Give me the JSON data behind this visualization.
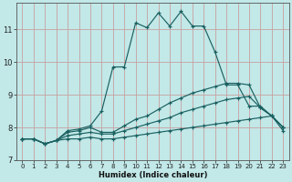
{
  "xlabel": "Humidex (Indice chaleur)",
  "bg_color": "#c2e8e8",
  "grid_color": "#c8a0a0",
  "line_color": "#1a6060",
  "xlim": [
    -0.5,
    23.5
  ],
  "ylim": [
    7.0,
    11.8
  ],
  "yticks": [
    7,
    8,
    9,
    10,
    11
  ],
  "xticks": [
    0,
    1,
    2,
    3,
    4,
    5,
    6,
    7,
    8,
    9,
    10,
    11,
    12,
    13,
    14,
    15,
    16,
    17,
    18,
    19,
    20,
    21,
    22,
    23
  ],
  "lines": [
    {
      "x": [
        0,
        1,
        2,
        3,
        4,
        5,
        6,
        7,
        8,
        9,
        10,
        11,
        12,
        13,
        14,
        15,
        16,
        17,
        18,
        19,
        20,
        21,
        22,
        23
      ],
      "y": [
        7.65,
        7.65,
        7.5,
        7.6,
        7.65,
        7.65,
        7.7,
        7.65,
        7.65,
        7.7,
        7.75,
        7.8,
        7.85,
        7.9,
        7.95,
        8.0,
        8.05,
        8.1,
        8.15,
        8.2,
        8.25,
        8.3,
        8.35,
        7.9
      ]
    },
    {
      "x": [
        0,
        1,
        2,
        3,
        4,
        5,
        6,
        7,
        8,
        9,
        10,
        11,
        12,
        13,
        14,
        15,
        16,
        17,
        18,
        19,
        20,
        21,
        22,
        23
      ],
      "y": [
        7.65,
        7.65,
        7.5,
        7.6,
        7.75,
        7.8,
        7.85,
        7.8,
        7.8,
        7.9,
        8.0,
        8.1,
        8.2,
        8.3,
        8.45,
        8.55,
        8.65,
        8.75,
        8.85,
        8.9,
        8.95,
        8.6,
        8.35,
        8.0
      ]
    },
    {
      "x": [
        0,
        1,
        2,
        3,
        4,
        5,
        6,
        7,
        8,
        9,
        10,
        11,
        12,
        13,
        14,
        15,
        16,
        17,
        18,
        19,
        20,
        21,
        22,
        23
      ],
      "y": [
        7.65,
        7.65,
        7.5,
        7.6,
        7.85,
        7.9,
        8.0,
        7.85,
        7.85,
        8.05,
        8.25,
        8.35,
        8.55,
        8.75,
        8.9,
        9.05,
        9.15,
        9.25,
        9.35,
        9.35,
        9.3,
        8.6,
        8.35,
        8.0
      ]
    },
    {
      "x": [
        0,
        1,
        2,
        3,
        4,
        5,
        6,
        7,
        8,
        9,
        10,
        11,
        12,
        13,
        14,
        15,
        16,
        17,
        18,
        19,
        20,
        21,
        22,
        23
      ],
      "y": [
        7.65,
        7.65,
        7.5,
        7.6,
        7.9,
        7.95,
        8.05,
        8.5,
        9.85,
        9.85,
        11.2,
        11.05,
        11.5,
        11.1,
        11.55,
        11.1,
        11.1,
        10.3,
        9.3,
        9.3,
        8.65,
        8.65,
        8.35,
        8.0
      ]
    }
  ]
}
